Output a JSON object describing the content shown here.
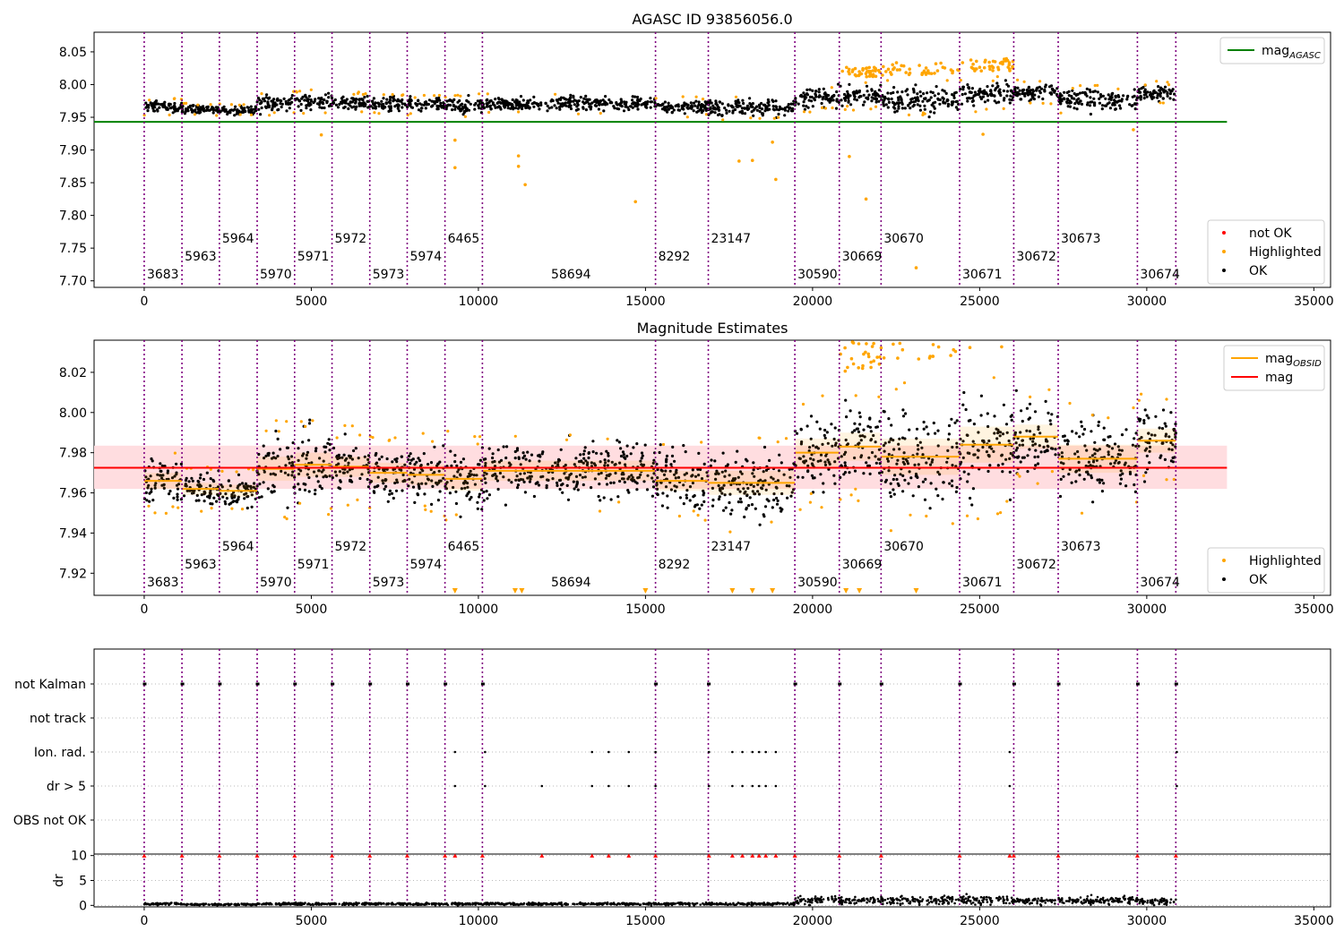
{
  "figure": {
    "title_top": "AGASC ID 93856056.0",
    "title_mid": "Magnitude Estimates"
  },
  "colors": {
    "ok": "#000000",
    "highlighted": "#ffa500",
    "not_ok": "#ff0000",
    "mag_agasc": "#008000",
    "mag_obsid": "#ffa500",
    "mag": "#ff0000",
    "obs_line": "#800080",
    "band": "#ffdde0"
  },
  "legends": {
    "top_upper": [
      {
        "label": "mag",
        "sub": "AGASC",
        "kind": "line",
        "color": "#008000"
      }
    ],
    "top_lower": [
      {
        "label": "not OK",
        "kind": "dot",
        "color": "#ff0000"
      },
      {
        "label": "Highlighted",
        "kind": "dot",
        "color": "#ffa500"
      },
      {
        "label": "OK",
        "kind": "dot",
        "color": "#000000"
      }
    ],
    "mid_upper": [
      {
        "label": "mag",
        "sub": "OBSID",
        "kind": "line",
        "color": "#ffa500"
      },
      {
        "label": "mag",
        "kind": "line",
        "color": "#ff0000"
      }
    ],
    "mid_lower": [
      {
        "label": "Highlighted",
        "kind": "dot",
        "color": "#ffa500"
      },
      {
        "label": "OK",
        "kind": "dot",
        "color": "#000000"
      }
    ]
  },
  "chart_data": [
    {
      "type": "scatter",
      "title": "AGASC ID 93856056.0",
      "xlim": [
        -1500,
        35500
      ],
      "ylim": [
        7.69,
        8.08
      ],
      "xticks": [
        0,
        5000,
        10000,
        15000,
        20000,
        25000,
        30000,
        35000
      ],
      "yticks": [
        7.7,
        7.75,
        7.8,
        7.85,
        7.9,
        7.95,
        8.0,
        8.05
      ],
      "mag_agasc": 7.943,
      "mag_agasc_xrange": [
        -1500,
        32400
      ],
      "obs_boundaries": [
        0,
        1130,
        2250,
        3380,
        4500,
        5620,
        6750,
        7870,
        9000,
        10120,
        15300,
        16880,
        19470,
        20800,
        22050,
        24400,
        26020,
        27350,
        29720,
        30870
      ],
      "obs_labels": [
        "3683",
        "5963",
        "5964",
        "5970",
        "5971",
        "5972",
        "5973",
        "5974",
        "6465",
        "58694",
        "8292",
        "23147",
        "30590",
        "30669",
        "30670",
        "30671",
        "30672",
        "30673",
        "30674"
      ],
      "obs_means": [
        7.966,
        7.962,
        7.961,
        7.972,
        7.974,
        7.973,
        7.97,
        7.969,
        7.967,
        7.971,
        7.966,
        7.965,
        7.98,
        7.983,
        7.978,
        7.984,
        7.988,
        7.977,
        7.986
      ],
      "obs_spreads": [
        0.004,
        0.003,
        0.003,
        0.006,
        0.006,
        0.005,
        0.005,
        0.005,
        0.006,
        0.005,
        0.005,
        0.006,
        0.007,
        0.007,
        0.009,
        0.009,
        0.006,
        0.007,
        0.006
      ],
      "highlighted_outliers": [
        {
          "x": 9300,
          "y": 7.915
        },
        {
          "x": 9300,
          "y": 7.873
        },
        {
          "x": 11200,
          "y": 7.891
        },
        {
          "x": 11200,
          "y": 7.875
        },
        {
          "x": 11400,
          "y": 7.847
        },
        {
          "x": 14700,
          "y": 7.821
        },
        {
          "x": 17800,
          "y": 7.883
        },
        {
          "x": 18200,
          "y": 7.884
        },
        {
          "x": 18800,
          "y": 7.912
        },
        {
          "x": 18900,
          "y": 7.855
        },
        {
          "x": 21100,
          "y": 7.89
        },
        {
          "x": 21600,
          "y": 7.825
        },
        {
          "x": 23100,
          "y": 7.72
        },
        {
          "x": 29600,
          "y": 7.931
        },
        {
          "x": 25100,
          "y": 7.924
        },
        {
          "x": 5300,
          "y": 7.923
        }
      ]
    },
    {
      "type": "scatter",
      "title": "Magnitude Estimates",
      "xlim": [
        -1500,
        35500
      ],
      "ylim": [
        7.909,
        8.036
      ],
      "xticks": [
        0,
        5000,
        10000,
        15000,
        20000,
        25000,
        30000,
        35000
      ],
      "yticks": [
        7.92,
        7.94,
        7.96,
        7.98,
        8.0,
        8.02
      ],
      "mag": 7.9725,
      "mag_band": [
        7.962,
        7.9835
      ],
      "mag_xrange": [
        -1500,
        32400
      ],
      "clipped_low_markers": [
        9300,
        11100,
        11300,
        15000,
        17600,
        18200,
        18800,
        21000,
        21400,
        23100
      ]
    },
    {
      "type": "scatter",
      "title": "",
      "xlim": [
        -1500,
        35500
      ],
      "flag_categories": [
        "not Kalman",
        "not track",
        "Ion. rad.",
        "dr > 5",
        "OBS not OK"
      ],
      "flag_not_kalman_x": [
        0,
        1130,
        2250,
        3380,
        4500,
        5620,
        6750,
        7870,
        9000,
        10120,
        15300,
        16880,
        19470,
        20800,
        22050,
        24400,
        26020,
        27350,
        29720,
        30870
      ],
      "flag_ion_rad_x": [
        9300,
        10200,
        13400,
        13900,
        14500,
        15300,
        16900,
        17600,
        17900,
        18200,
        18400,
        18600,
        18900,
        25900,
        30900
      ],
      "flag_dr5_x": [
        9300,
        10200,
        11900,
        13400,
        13900,
        14500,
        15300,
        16900,
        17600,
        17900,
        18200,
        18400,
        18600,
        18900,
        25900,
        30900
      ],
      "dr_ylim": [
        -0.3,
        10.3
      ],
      "dr_yticks": [
        0,
        5,
        10
      ],
      "dr_ylabel": "dr",
      "dr_baseline": [
        0.3,
        0.2,
        0.2,
        0.3,
        0.3,
        0.3,
        0.3,
        0.3,
        0.3,
        0.3,
        0.3,
        0.3,
        1.0,
        0.9,
        1.0,
        1.1,
        0.9,
        1.0,
        0.8
      ],
      "dr_clipped_x": [
        0,
        1130,
        2250,
        3380,
        4500,
        5620,
        6750,
        7870,
        9000,
        9300,
        10120,
        11900,
        13400,
        13900,
        14500,
        15300,
        16900,
        17600,
        17900,
        18200,
        18400,
        18600,
        18900,
        19470,
        20800,
        22050,
        24400,
        25900,
        26020,
        27350,
        29720,
        30870
      ]
    }
  ]
}
